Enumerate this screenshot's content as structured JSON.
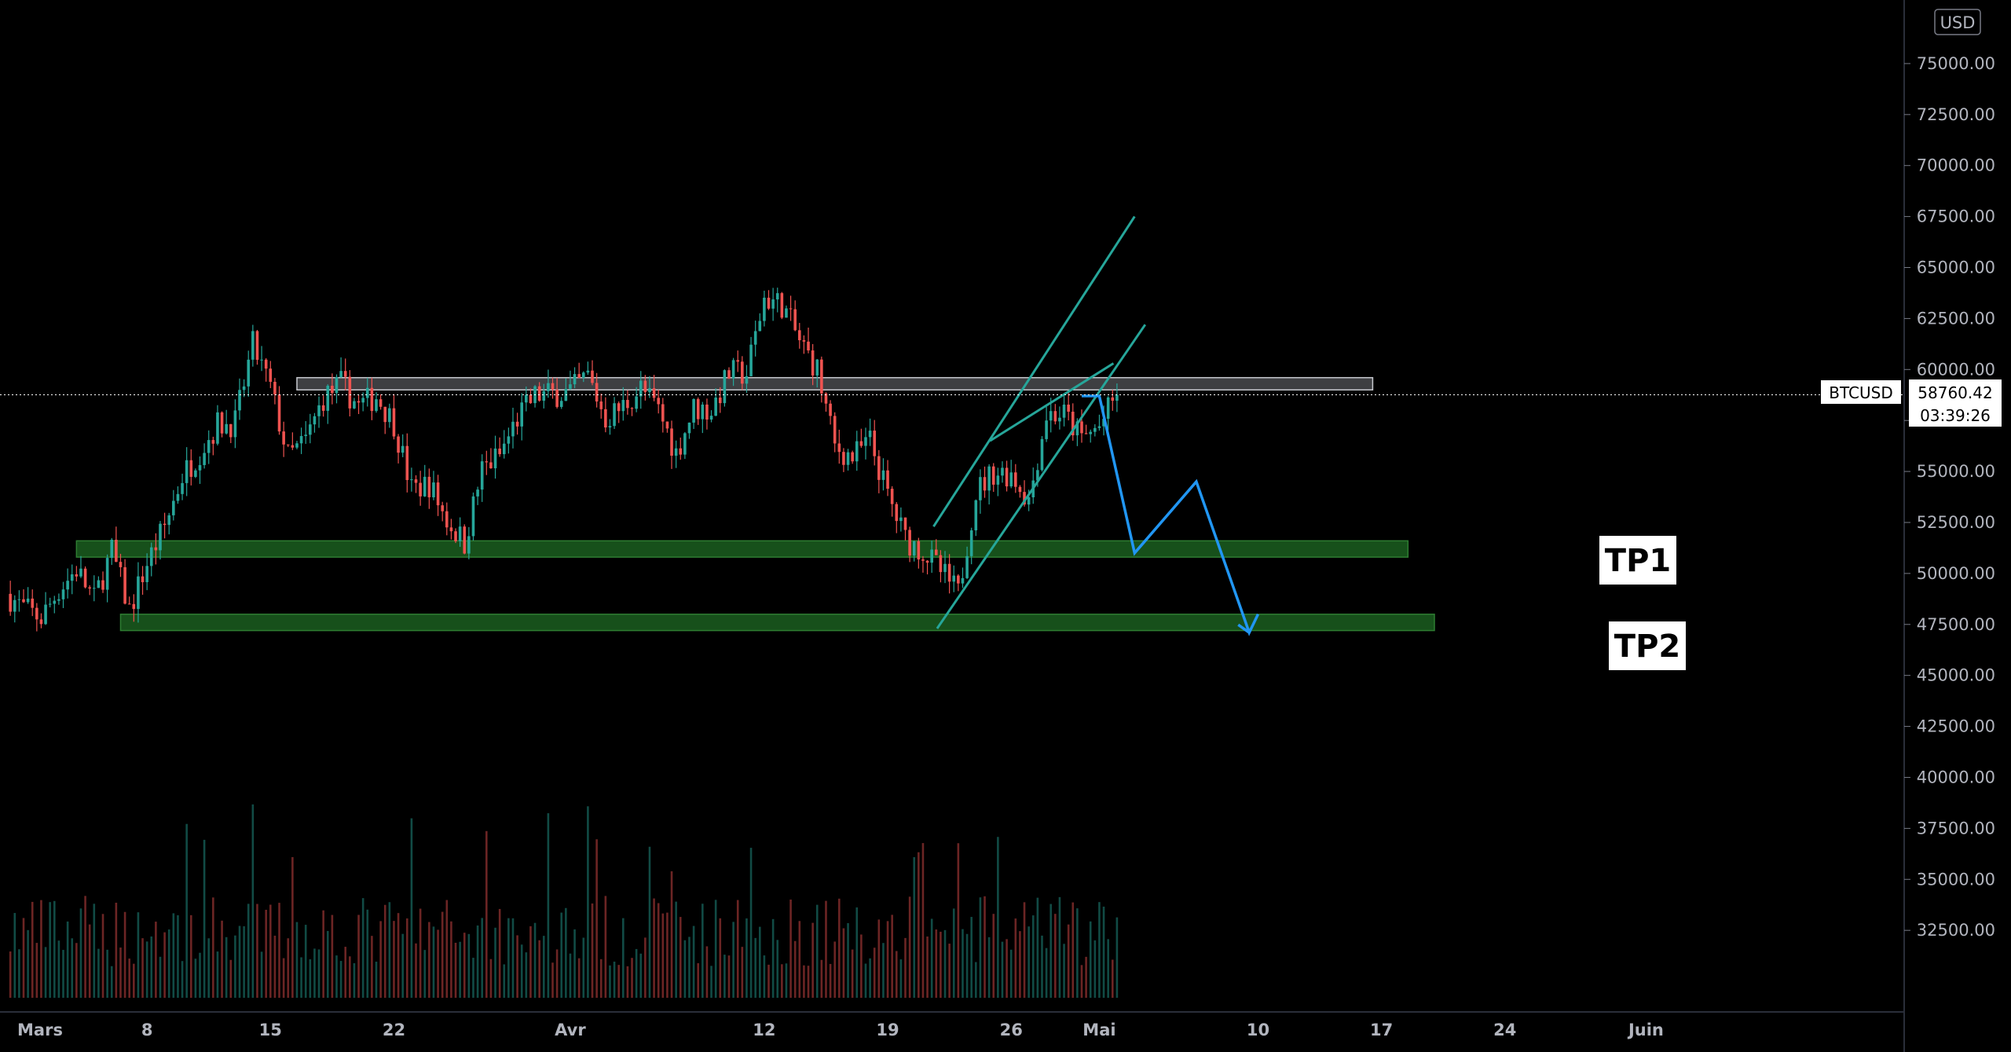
{
  "chart_data": {
    "type": "candlestick",
    "symbol": "BTCUSD",
    "currency": "USD",
    "last_price": "58760.42",
    "countdown": "03:39:26",
    "ylim": [
      28500,
      77000
    ],
    "y_ticks": [
      "75000.00",
      "72500.00",
      "70000.00",
      "67500.00",
      "65000.00",
      "62500.00",
      "60000.00",
      "57500.00",
      "55000.00",
      "52500.00",
      "50000.00",
      "47500.00",
      "45000.00",
      "42500.00",
      "40000.00",
      "37500.00",
      "35000.00",
      "32500.00"
    ],
    "x_ticks": [
      {
        "label": "Mars",
        "day": 0
      },
      {
        "label": "8",
        "day": 7
      },
      {
        "label": "15",
        "day": 14
      },
      {
        "label": "22",
        "day": 21
      },
      {
        "label": "Avr",
        "day": 31
      },
      {
        "label": "12",
        "day": 42
      },
      {
        "label": "19",
        "day": 49
      },
      {
        "label": "26",
        "day": 56
      },
      {
        "label": "Mai",
        "day": 61
      },
      {
        "label": "10",
        "day": 70
      },
      {
        "label": "17",
        "day": 77
      },
      {
        "label": "24",
        "day": 84
      },
      {
        "label": "Juin",
        "day": 92
      }
    ],
    "daily_close": [
      {
        "day": -1,
        "close": 49000
      },
      {
        "day": 0,
        "close": 48300
      },
      {
        "day": 1,
        "close": 47800
      },
      {
        "day": 2,
        "close": 49200
      },
      {
        "day": 3,
        "close": 50200
      },
      {
        "day": 4,
        "close": 48700
      },
      {
        "day": 5,
        "close": 51100
      },
      {
        "day": 6,
        "close": 48200
      },
      {
        "day": 7,
        "close": 50500
      },
      {
        "day": 8,
        "close": 52300
      },
      {
        "day": 9,
        "close": 54800
      },
      {
        "day": 10,
        "close": 56000
      },
      {
        "day": 11,
        "close": 57300
      },
      {
        "day": 12,
        "close": 57400
      },
      {
        "day": 13,
        "close": 61200
      },
      {
        "day": 14,
        "close": 59100
      },
      {
        "day": 15,
        "close": 55700
      },
      {
        "day": 16,
        "close": 56500
      },
      {
        "day": 17,
        "close": 58600
      },
      {
        "day": 18,
        "close": 59300
      },
      {
        "day": 19,
        "close": 58200
      },
      {
        "day": 20,
        "close": 58700
      },
      {
        "day": 21,
        "close": 57400
      },
      {
        "day": 22,
        "close": 54100
      },
      {
        "day": 23,
        "close": 54400
      },
      {
        "day": 24,
        "close": 52600
      },
      {
        "day": 25,
        "close": 51500
      },
      {
        "day": 26,
        "close": 55100
      },
      {
        "day": 27,
        "close": 55800
      },
      {
        "day": 28,
        "close": 57600
      },
      {
        "day": 29,
        "close": 58700
      },
      {
        "day": 30,
        "close": 58800
      },
      {
        "day": 31,
        "close": 58900
      },
      {
        "day": 32,
        "close": 59700
      },
      {
        "day": 33,
        "close": 57600
      },
      {
        "day": 34,
        "close": 58200
      },
      {
        "day": 35,
        "close": 59100
      },
      {
        "day": 36,
        "close": 58000
      },
      {
        "day": 37,
        "close": 55900
      },
      {
        "day": 38,
        "close": 58100
      },
      {
        "day": 39,
        "close": 58000
      },
      {
        "day": 40,
        "close": 59800
      },
      {
        "day": 41,
        "close": 59800
      },
      {
        "day": 42,
        "close": 63500
      },
      {
        "day": 43,
        "close": 63200
      },
      {
        "day": 44,
        "close": 61400
      },
      {
        "day": 45,
        "close": 60000
      },
      {
        "day": 46,
        "close": 56200
      },
      {
        "day": 47,
        "close": 55700
      },
      {
        "day": 48,
        "close": 56500
      },
      {
        "day": 49,
        "close": 53800
      },
      {
        "day": 50,
        "close": 51700
      },
      {
        "day": 51,
        "close": 51100
      },
      {
        "day": 52,
        "close": 50100
      },
      {
        "day": 53,
        "close": 49000
      },
      {
        "day": 54,
        "close": 54000
      },
      {
        "day": 55,
        "close": 55000
      },
      {
        "day": 56,
        "close": 54900
      },
      {
        "day": 57,
        "close": 53600
      },
      {
        "day": 58,
        "close": 57800
      },
      {
        "day": 59,
        "close": 57800
      },
      {
        "day": 60,
        "close": 56600
      },
      {
        "day": 61,
        "close": 57200
      },
      {
        "day": 62,
        "close": 58760
      }
    ],
    "zones": [
      {
        "top": 59600,
        "bottom": 59000,
        "start_day": 15.5,
        "end_day": 76.5,
        "color": "#b2b5be"
      },
      {
        "top": 51600,
        "bottom": 50800,
        "start_day": 3.0,
        "end_day": 78.5,
        "color": "#1b5e20"
      },
      {
        "top": 48000,
        "bottom": 47200,
        "start_day": 5.5,
        "end_day": 80.0,
        "color": "#1b5e20"
      }
    ],
    "trend_lines": [
      {
        "from": [
          51.6,
          52300
        ],
        "to": [
          63.0,
          67500
        ]
      },
      {
        "from": [
          51.8,
          47300
        ],
        "to": [
          63.6,
          62200
        ]
      },
      {
        "from": [
          54.8,
          56500
        ],
        "to": [
          61.8,
          60300
        ]
      }
    ],
    "projection": [
      [
        60.0,
        58700
      ],
      [
        61.0,
        58700
      ],
      [
        63.0,
        51000
      ],
      [
        66.5,
        54500
      ],
      [
        69.5,
        47100
      ],
      [
        70.0,
        48000
      ]
    ],
    "annotations": [
      "TP1",
      "TP2"
    ],
    "colors": {
      "up": "#26a69a",
      "down": "#ef5350",
      "trend": "#26a69a",
      "projection": "#2196f3",
      "price_line": "#ffffff"
    }
  }
}
